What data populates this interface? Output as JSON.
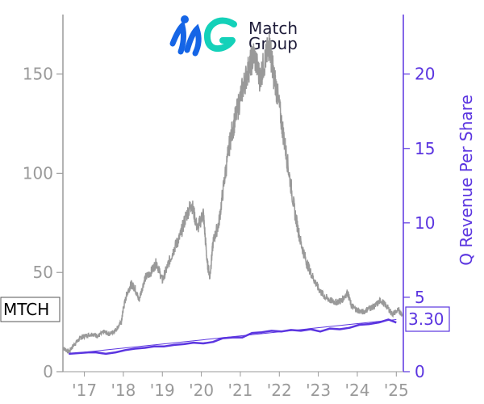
{
  "logo": {
    "line1": "Match",
    "line2": "Group",
    "colors": {
      "blue": "#1565e6",
      "teal": "#14d1b9",
      "text": "#1f1d3a"
    }
  },
  "chart_data": {
    "type": "line",
    "ticker": "MTCH",
    "last_value_label": "3.30",
    "ylabel_right": "Q Revenue Per Share",
    "x_tick_labels": [
      "'17",
      "'18",
      "'19",
      "'20",
      "'21",
      "'22",
      "'23",
      "'24",
      "'25"
    ],
    "x_tick_years": [
      2017,
      2018,
      2019,
      2020,
      2021,
      2022,
      2023,
      2024,
      2025
    ],
    "xlim": [
      2016.45,
      2025.18
    ],
    "ylim_left": [
      0,
      180
    ],
    "yticks_left": [
      0,
      50,
      100,
      150
    ],
    "ylim_right": [
      0,
      24
    ],
    "yticks_right": [
      0,
      5,
      10,
      15,
      20
    ],
    "colors": {
      "price": "#999999",
      "revenue": "#5b35e0",
      "axis_left": "#9a9a9a",
      "axis_right": "#5b35e0"
    },
    "series": [
      {
        "name": "MTCH",
        "axis": "left",
        "color": "#999999",
        "x": [
          2016.45,
          2016.6,
          2016.75,
          2016.9,
          2017.0,
          2017.2,
          2017.35,
          2017.5,
          2017.65,
          2017.8,
          2017.95,
          2018.0,
          2018.1,
          2018.2,
          2018.3,
          2018.4,
          2018.55,
          2018.7,
          2018.85,
          2019.0,
          2019.15,
          2019.3,
          2019.45,
          2019.6,
          2019.75,
          2019.9,
          2020.05,
          2020.15,
          2020.22,
          2020.3,
          2020.45,
          2020.6,
          2020.75,
          2020.9,
          2021.05,
          2021.2,
          2021.35,
          2021.5,
          2021.65,
          2021.75,
          2021.85,
          2021.95,
          2022.1,
          2022.25,
          2022.4,
          2022.55,
          2022.7,
          2022.85,
          2023.0,
          2023.15,
          2023.3,
          2023.45,
          2023.6,
          2023.75,
          2023.85,
          2024.0,
          2024.15,
          2024.3,
          2024.45,
          2024.6,
          2024.75,
          2024.9,
          2025.05,
          2025.15
        ],
        "y": [
          12,
          10,
          14,
          17,
          18,
          19,
          18,
          20,
          19,
          21,
          25,
          32,
          40,
          44,
          42,
          36,
          47,
          50,
          55,
          46,
          54,
          62,
          68,
          78,
          85,
          72,
          80,
          55,
          48,
          65,
          75,
          98,
          118,
          130,
          142,
          152,
          160,
          148,
          158,
          165,
          150,
          140,
          120,
          100,
          80,
          65,
          55,
          48,
          42,
          38,
          36,
          35,
          36,
          40,
          33,
          31,
          30,
          32,
          33,
          36,
          33,
          29,
          31,
          29
        ]
      },
      {
        "name": "Q Revenue Per Share",
        "axis": "right",
        "color": "#5b35e0",
        "x": [
          2016.6,
          2016.85,
          2017.1,
          2017.3,
          2017.55,
          2017.8,
          2018.05,
          2018.3,
          2018.55,
          2018.8,
          2019.05,
          2019.3,
          2019.55,
          2019.8,
          2020.05,
          2020.3,
          2020.55,
          2020.8,
          2021.05,
          2021.3,
          2021.55,
          2021.8,
          2022.05,
          2022.3,
          2022.55,
          2022.8,
          2023.05,
          2023.3,
          2023.55,
          2023.8,
          2024.05,
          2024.3,
          2024.55,
          2024.8,
          2025.0
        ],
        "y": [
          1.2,
          1.25,
          1.3,
          1.3,
          1.2,
          1.3,
          1.45,
          1.55,
          1.6,
          1.7,
          1.7,
          1.8,
          1.85,
          1.95,
          1.9,
          2.0,
          2.25,
          2.3,
          2.3,
          2.6,
          2.65,
          2.75,
          2.7,
          2.8,
          2.75,
          2.85,
          2.7,
          2.9,
          2.85,
          2.95,
          3.15,
          3.2,
          3.3,
          3.5,
          3.3
        ]
      }
    ]
  }
}
